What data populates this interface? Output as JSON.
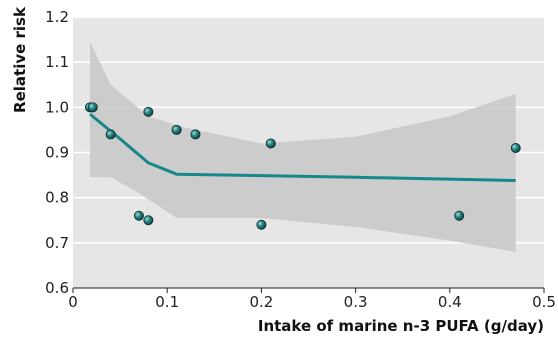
{
  "chart_data": {
    "type": "scatter",
    "title": "",
    "xlabel": "Intake of marine n-3 PUFA (g/day)",
    "ylabel": "Relative risk",
    "xlim": [
      0,
      0.5
    ],
    "ylim": [
      0.6,
      1.2
    ],
    "x_ticks": [
      0,
      0.1,
      0.2,
      0.3,
      0.4,
      0.5
    ],
    "x_tick_labels": [
      "0",
      "0.1",
      "0.2",
      "0.3",
      "0.4",
      "0.5"
    ],
    "y_ticks": [
      0.6,
      0.7,
      0.8,
      0.9,
      1.0,
      1.1,
      1.2
    ],
    "y_tick_labels": [
      "0.6",
      "0.7",
      "0.8",
      "0.9",
      "1.0",
      "1.1",
      "1.2"
    ],
    "grid": "horizontal",
    "points": [
      {
        "x": 0.018,
        "y": 1.0
      },
      {
        "x": 0.021,
        "y": 1.0
      },
      {
        "x": 0.04,
        "y": 0.94
      },
      {
        "x": 0.07,
        "y": 0.76
      },
      {
        "x": 0.08,
        "y": 0.75
      },
      {
        "x": 0.08,
        "y": 0.99
      },
      {
        "x": 0.11,
        "y": 0.95
      },
      {
        "x": 0.13,
        "y": 0.94
      },
      {
        "x": 0.2,
        "y": 0.74
      },
      {
        "x": 0.21,
        "y": 0.92
      },
      {
        "x": 0.41,
        "y": 0.76
      },
      {
        "x": 0.47,
        "y": 0.91
      }
    ],
    "trend_line": [
      {
        "x": 0.018,
        "y": 0.985
      },
      {
        "x": 0.05,
        "y": 0.93
      },
      {
        "x": 0.08,
        "y": 0.877
      },
      {
        "x": 0.11,
        "y": 0.852
      },
      {
        "x": 0.3,
        "y": 0.845
      },
      {
        "x": 0.47,
        "y": 0.838
      }
    ],
    "confidence_band": {
      "upper": [
        {
          "x": 0.018,
          "y": 1.145
        },
        {
          "x": 0.04,
          "y": 1.05
        },
        {
          "x": 0.08,
          "y": 0.98
        },
        {
          "x": 0.12,
          "y": 0.955
        },
        {
          "x": 0.2,
          "y": 0.92
        },
        {
          "x": 0.3,
          "y": 0.935
        },
        {
          "x": 0.4,
          "y": 0.98
        },
        {
          "x": 0.47,
          "y": 1.03
        }
      ],
      "lower": [
        {
          "x": 0.018,
          "y": 0.845
        },
        {
          "x": 0.04,
          "y": 0.845
        },
        {
          "x": 0.07,
          "y": 0.81
        },
        {
          "x": 0.11,
          "y": 0.755
        },
        {
          "x": 0.2,
          "y": 0.755
        },
        {
          "x": 0.3,
          "y": 0.735
        },
        {
          "x": 0.4,
          "y": 0.705
        },
        {
          "x": 0.47,
          "y": 0.68
        }
      ]
    },
    "colors": {
      "plot_background": "#e6e6e6",
      "band": "#c9c9c9",
      "gridline": "#ffffff",
      "trend_line": "#16878a",
      "point_fill": "#1e6e6e",
      "point_stroke": "#0d2f2f"
    }
  }
}
